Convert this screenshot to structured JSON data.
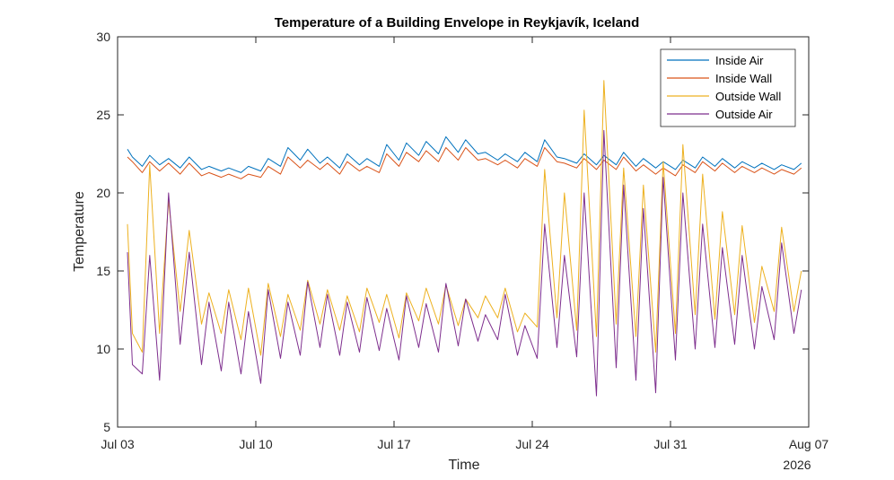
{
  "chart_data": {
    "type": "line",
    "title": "Temperature of a Building Envelope in Reykjavík, Iceland",
    "xlabel": "Time",
    "ylabel": "Temperature",
    "year_label": "2026",
    "x_tick_labels": [
      "Jul 03",
      "Jul 10",
      "Jul 17",
      "Jul 24",
      "Jul 31",
      "Aug 07"
    ],
    "x_range": [
      "2026-07-03",
      "2026-08-07"
    ],
    "ylim": [
      5,
      30
    ],
    "y_ticks": [
      5,
      10,
      15,
      20,
      25,
      30
    ],
    "grid": false,
    "legend_position": "top-right",
    "x": [
      "2026-07-03 12:00",
      "2026-07-03 18:00",
      "2026-07-04 06:00",
      "2026-07-04 15:00",
      "2026-07-05 03:00",
      "2026-07-05 14:00",
      "2026-07-06 04:00",
      "2026-07-06 15:00",
      "2026-07-07 06:00",
      "2026-07-07 15:00",
      "2026-07-08 06:00",
      "2026-07-08 15:00",
      "2026-07-09 06:00",
      "2026-07-09 15:00",
      "2026-07-10 06:00",
      "2026-07-10 15:00",
      "2026-07-11 06:00",
      "2026-07-11 15:00",
      "2026-07-12 06:00",
      "2026-07-12 15:00",
      "2026-07-13 06:00",
      "2026-07-13 15:00",
      "2026-07-14 06:00",
      "2026-07-14 15:00",
      "2026-07-15 06:00",
      "2026-07-15 15:00",
      "2026-07-16 06:00",
      "2026-07-16 15:00",
      "2026-07-17 06:00",
      "2026-07-17 15:00",
      "2026-07-18 06:00",
      "2026-07-18 15:00",
      "2026-07-19 06:00",
      "2026-07-19 15:00",
      "2026-07-20 06:00",
      "2026-07-20 15:00",
      "2026-07-21 06:00",
      "2026-07-21 15:00",
      "2026-07-22 06:00",
      "2026-07-22 15:00",
      "2026-07-23 06:00",
      "2026-07-23 15:00",
      "2026-07-24 06:00",
      "2026-07-24 15:00",
      "2026-07-25 06:00",
      "2026-07-25 15:00",
      "2026-07-26 06:00",
      "2026-07-26 15:00",
      "2026-07-27 06:00",
      "2026-07-27 15:00",
      "2026-07-28 06:00",
      "2026-07-28 15:00",
      "2026-07-29 06:00",
      "2026-07-29 15:00",
      "2026-07-30 06:00",
      "2026-07-30 15:00",
      "2026-07-31 06:00",
      "2026-07-31 15:00",
      "2026-08-01 06:00",
      "2026-08-01 15:00",
      "2026-08-02 06:00",
      "2026-08-02 15:00",
      "2026-08-03 06:00",
      "2026-08-03 15:00",
      "2026-08-04 06:00",
      "2026-08-04 15:00",
      "2026-08-05 06:00",
      "2026-08-05 15:00",
      "2026-08-06 06:00",
      "2026-08-06 15:00"
    ],
    "series": [
      {
        "name": "Inside Air",
        "color": "#0072BD",
        "values": [
          22.8,
          22.3,
          21.7,
          22.4,
          21.8,
          22.2,
          21.6,
          22.3,
          21.5,
          21.7,
          21.4,
          21.6,
          21.3,
          21.7,
          21.4,
          22.2,
          21.7,
          22.9,
          22.1,
          22.8,
          21.9,
          22.3,
          21.6,
          22.5,
          21.8,
          22.2,
          21.7,
          23.1,
          22.1,
          23.2,
          22.4,
          23.3,
          22.5,
          23.6,
          22.6,
          23.4,
          22.5,
          22.6,
          22.1,
          22.5,
          22.0,
          22.6,
          22.0,
          23.4,
          22.3,
          22.2,
          21.9,
          22.5,
          21.8,
          22.4,
          21.8,
          22.6,
          21.7,
          22.2,
          21.6,
          22.0,
          21.5,
          22.1,
          21.6,
          22.3,
          21.7,
          22.2,
          21.6,
          22.0,
          21.6,
          21.9,
          21.5,
          21.8,
          21.5,
          21.9
        ]
      },
      {
        "name": "Inside Wall",
        "color": "#D95319",
        "values": [
          22.3,
          22.0,
          21.3,
          22.0,
          21.4,
          21.9,
          21.2,
          21.9,
          21.1,
          21.3,
          21.0,
          21.2,
          20.9,
          21.2,
          21.0,
          21.7,
          21.2,
          22.3,
          21.6,
          22.1,
          21.5,
          21.9,
          21.2,
          22.0,
          21.4,
          21.7,
          21.3,
          22.5,
          21.7,
          22.6,
          22.0,
          22.7,
          22.0,
          22.9,
          22.1,
          22.9,
          22.1,
          22.2,
          21.8,
          22.1,
          21.6,
          22.2,
          21.7,
          22.9,
          22.0,
          21.9,
          21.6,
          22.2,
          21.5,
          22.1,
          21.5,
          22.3,
          21.4,
          21.8,
          21.2,
          21.6,
          21.1,
          21.8,
          21.3,
          22.0,
          21.4,
          21.9,
          21.3,
          21.7,
          21.3,
          21.6,
          21.2,
          21.5,
          21.2,
          21.6
        ]
      },
      {
        "name": "Outside Wall",
        "color": "#EDB120",
        "values": [
          18.0,
          11.0,
          9.8,
          21.8,
          11.0,
          19.5,
          12.4,
          17.6,
          11.6,
          13.6,
          11.0,
          13.8,
          10.6,
          13.9,
          9.6,
          14.2,
          10.8,
          13.5,
          11.2,
          14.4,
          11.6,
          13.8,
          11.2,
          13.4,
          11.1,
          13.9,
          11.7,
          13.5,
          10.7,
          13.6,
          11.8,
          13.9,
          11.6,
          14.1,
          11.5,
          13.2,
          12.0,
          13.4,
          12.0,
          13.9,
          11.1,
          12.3,
          11.4,
          21.5,
          12.0,
          20.0,
          11.2,
          25.3,
          10.8,
          27.2,
          11.6,
          21.6,
          10.8,
          20.5,
          9.8,
          22.0,
          11.0,
          23.1,
          12.2,
          21.2,
          11.9,
          18.8,
          12.2,
          17.9,
          11.7,
          15.3,
          12.4,
          17.8,
          12.4,
          15.0
        ]
      },
      {
        "name": "Outside Air",
        "color": "#7E2F8E",
        "values": [
          16.2,
          9.0,
          8.4,
          16.0,
          8.0,
          20.0,
          10.3,
          16.2,
          9.0,
          13.0,
          8.6,
          13.0,
          8.4,
          12.4,
          7.8,
          13.8,
          9.4,
          13.0,
          9.6,
          14.3,
          10.1,
          13.5,
          9.6,
          13.0,
          9.8,
          13.3,
          9.9,
          12.6,
          9.3,
          13.4,
          10.1,
          12.9,
          9.8,
          14.2,
          10.2,
          13.2,
          10.5,
          12.2,
          10.6,
          13.5,
          9.6,
          11.5,
          9.4,
          18.0,
          10.1,
          16.0,
          9.5,
          20.0,
          7.0,
          24.0,
          8.8,
          20.5,
          8.0,
          19.0,
          7.2,
          21.0,
          9.3,
          20.0,
          10.0,
          18.0,
          10.1,
          16.5,
          10.3,
          16.0,
          10.0,
          14.0,
          10.6,
          16.8,
          11.0,
          13.8
        ]
      }
    ]
  }
}
